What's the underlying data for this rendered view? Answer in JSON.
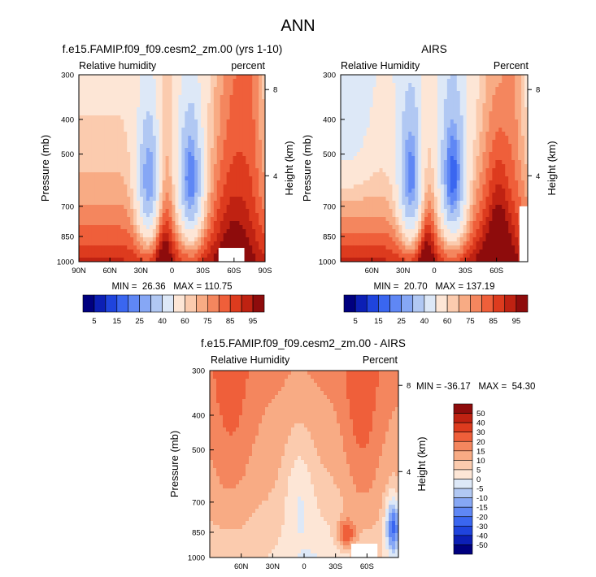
{
  "figure": {
    "title": "ANN"
  },
  "colors": {
    "rh_levels": [
      "#00007f",
      "#0c1fb5",
      "#1f44dd",
      "#3a66f0",
      "#5f87f5",
      "#86a7f5",
      "#b1c8f3",
      "#dde8f7",
      "#fde6d6",
      "#fbcbae",
      "#f8ab84",
      "#f4865e",
      "#ef5f3a",
      "#dd3b1e",
      "#bf2212",
      "#8e0c0c"
    ],
    "diff_levels": [
      "#00007f",
      "#0c1fb5",
      "#1f44dd",
      "#3a66f0",
      "#5f87f5",
      "#86a7f5",
      "#b1c8f3",
      "#dde8f7",
      "#fde6d6",
      "#fbcbae",
      "#f8ab84",
      "#f4865e",
      "#ef5f3a",
      "#dd3b1e",
      "#bf2212",
      "#8e0c0c"
    ]
  },
  "chart_data": [
    {
      "type": "heatmap",
      "title": "f.e15.FAMIP.f09_f09.cesm2_zm.00 (yrs 1-10)",
      "left_label": "Relative humidity",
      "right_label": "percent",
      "ylabel": "Pressure (mb)",
      "ylabel_right": "Height (km)",
      "xticks": [
        "90N",
        "60N",
        "30N",
        "0",
        "30S",
        "60S",
        "90S"
      ],
      "xtick_values": [
        90,
        60,
        30,
        0,
        -30,
        -60,
        -90
      ],
      "xlim": [
        90,
        -90
      ],
      "yticks": [
        "300",
        "400",
        "500",
        "700",
        "850",
        "1000"
      ],
      "ytick_values": [
        300,
        400,
        500,
        700,
        850,
        1000
      ],
      "ylim": [
        300,
        1000
      ],
      "height_ticks": [
        "8",
        "4"
      ],
      "height_tick_pressures": [
        330,
        575
      ],
      "stats": "MIN =  26.36   MAX = 110.75",
      "missing_region": {
        "lat": [
          -45,
          -70
        ],
        "pressure": [
          915,
          1000
        ]
      },
      "colorbar_labels": [
        "5",
        "15",
        "25",
        "40",
        "60",
        "75",
        "85",
        "95"
      ],
      "levels": [
        5,
        10,
        15,
        20,
        25,
        30,
        40,
        50,
        60,
        65,
        70,
        75,
        80,
        85,
        90,
        95
      ],
      "kind": "model"
    },
    {
      "type": "heatmap",
      "title": "AIRS",
      "left_label": "Relative Humidity",
      "right_label": "Percent",
      "ylabel": "Pressure (mb)",
      "ylabel_right": "Height (km)",
      "xticks": [
        "60N",
        "30N",
        "0",
        "30S",
        "60S"
      ],
      "xtick_values": [
        60,
        30,
        0,
        -30,
        -60
      ],
      "xlim": [
        90,
        -90
      ],
      "yticks": [
        "300",
        "400",
        "500",
        "700",
        "850",
        "1000"
      ],
      "ytick_values": [
        300,
        400,
        500,
        700,
        850,
        1000
      ],
      "ylim": [
        300,
        1000
      ],
      "height_ticks": [
        "8",
        "4"
      ],
      "height_tick_pressures": [
        330,
        575
      ],
      "stats": "MIN =  20.70   MAX = 137.19",
      "missing_region": {
        "lat": [
          -82,
          -90
        ],
        "pressure": [
          700,
          1000
        ]
      },
      "colorbar_labels": [
        "5",
        "15",
        "25",
        "40",
        "60",
        "75",
        "85",
        "95"
      ],
      "levels": [
        5,
        10,
        15,
        20,
        25,
        30,
        40,
        50,
        60,
        65,
        70,
        75,
        80,
        85,
        90,
        95
      ],
      "kind": "obs"
    },
    {
      "type": "heatmap",
      "title": "f.e15.FAMIP.f09_f09.cesm2_zm.00 - AIRS",
      "left_label": "Relative Humidity",
      "right_label": "Percent",
      "ylabel": "Pressure (mb)",
      "ylabel_right": "Height (km)",
      "xticks": [
        "60N",
        "30N",
        "0",
        "30S",
        "60S"
      ],
      "xtick_values": [
        60,
        30,
        0,
        -30,
        -60
      ],
      "xlim": [
        90,
        -90
      ],
      "yticks": [
        "300",
        "400",
        "500",
        "700",
        "850",
        "1000"
      ],
      "ytick_values": [
        300,
        400,
        500,
        700,
        850,
        1000
      ],
      "ylim": [
        300,
        1000
      ],
      "height_ticks": [
        "8",
        "4"
      ],
      "height_tick_pressures": [
        330,
        575
      ],
      "stats": "MIN = -36.17   MAX =  54.30",
      "missing_region": {
        "lat": [
          -45,
          -70
        ],
        "pressure": [
          915,
          1000
        ]
      },
      "colorbar_labels": [
        "50",
        "40",
        "30",
        "20",
        "15",
        "10",
        "5",
        "0",
        "-5",
        "-10",
        "-15",
        "-20",
        "-30",
        "-40",
        "-50"
      ],
      "levels": [
        -50,
        -40,
        -30,
        -20,
        -15,
        -10,
        -5,
        0,
        5,
        10,
        15,
        20,
        30,
        40,
        50
      ],
      "kind": "diff"
    }
  ]
}
